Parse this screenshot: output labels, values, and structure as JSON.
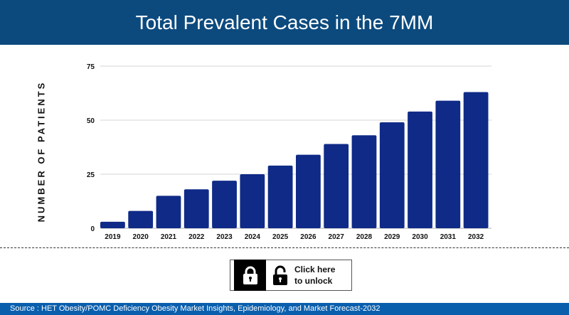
{
  "header": {
    "title": "Total Prevalent Cases in the 7MM"
  },
  "chart_data": {
    "type": "bar",
    "title": "Total Prevalent Cases in the 7MM",
    "ylabel": "NUMBER OF PATIENTS",
    "xlabel": "",
    "categories": [
      "2019",
      "2020",
      "2021",
      "2022",
      "2023",
      "2024",
      "2025",
      "2026",
      "2027",
      "2028",
      "2029",
      "2030",
      "2031",
      "2032"
    ],
    "values": [
      3,
      8,
      15,
      18,
      22,
      25,
      29,
      34,
      39,
      43,
      49,
      54,
      59,
      63
    ],
    "ylim": [
      0,
      75
    ],
    "yticks": [
      0,
      25,
      50,
      75
    ],
    "grid": true,
    "bar_color": "#0f2a87"
  },
  "unlock": {
    "label_line1": "Click here",
    "label_line2": "to unlock"
  },
  "footer": {
    "source": "Source : HET Obesity/POMC Deficiency Obesity Market Insights, Epidemiology, and Market Forecast-2032"
  }
}
